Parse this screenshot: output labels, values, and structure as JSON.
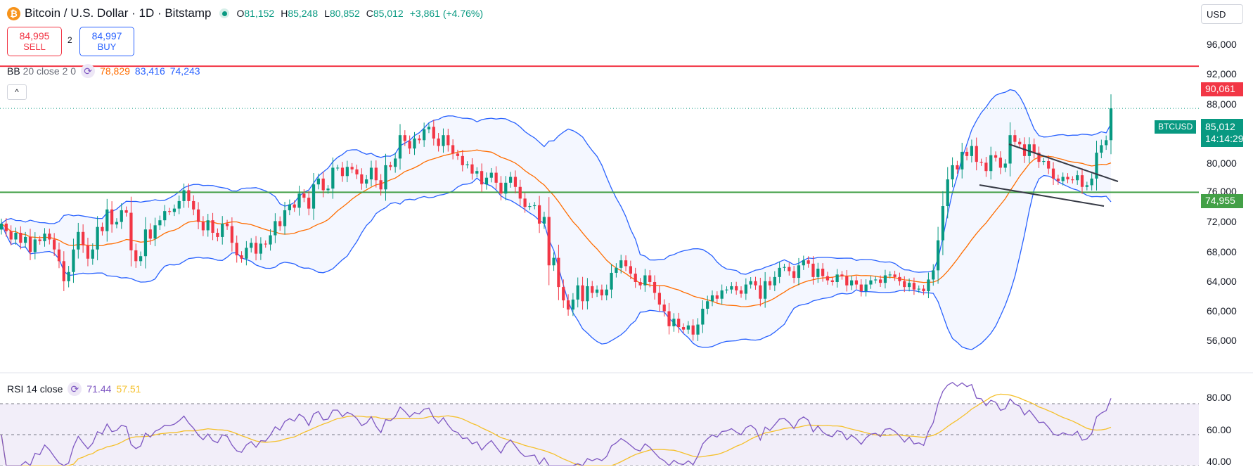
{
  "header": {
    "coin_icon": "bitcoin-icon",
    "title": "Bitcoin / U.S. Dollar · 1D · Bitstamp",
    "open_label": "O",
    "open": "81,152",
    "high_label": "H",
    "high": "85,248",
    "low_label": "L",
    "low": "80,852",
    "close_label": "C",
    "close": "85,012",
    "change": "+3,861 (+4.76%)"
  },
  "trade": {
    "sell_price": "84,995",
    "sell_label": "SELL",
    "spread": "2",
    "buy_price": "84,997",
    "buy_label": "BUY"
  },
  "bb": {
    "name": "BB",
    "params": "20 close 2 0",
    "basis": "78,829",
    "upper": "83,416",
    "lower": "74,243"
  },
  "rsi": {
    "name": "RSI",
    "params": "14 close",
    "value": "71.44",
    "ma": "57.51"
  },
  "currency": "USD",
  "price_axis": [
    "96,000",
    "92,000",
    "88,000",
    "80,000",
    "76,000",
    "72,000",
    "68,000",
    "64,000",
    "60,000",
    "56,000"
  ],
  "rsi_axis": [
    "80.00",
    "60.00",
    "40.00"
  ],
  "tags": {
    "resistance": "90,061",
    "support": "74,955",
    "symbol": "BTCUSD",
    "last_price": "85,012",
    "countdown": "14:14:29"
  },
  "colors": {
    "up": "#089981",
    "down": "#f23645",
    "bb_band": "#2962ff",
    "bb_basis": "#ff6d00",
    "rsi": "#7e57c2",
    "rsi_ma": "#f5c02b",
    "resistance": "#f23645",
    "support": "#43a047"
  },
  "chart_data": {
    "type": "candlestick",
    "y_range": [
      54000,
      98000
    ],
    "horizontal_lines": [
      90061,
      74955
    ],
    "last_price": 85012,
    "closes": [
      71200,
      70300,
      69300,
      70100,
      68900,
      69600,
      67800,
      69300,
      69100,
      70000,
      69300,
      68100,
      66700,
      64300,
      65400,
      68100,
      70200,
      68600,
      67000,
      68100,
      70800,
      70300,
      72900,
      71100,
      71400,
      72800,
      72500,
      68000,
      66700,
      67300,
      70500,
      69400,
      71000,
      71600,
      72700,
      72600,
      73000,
      73900,
      75200,
      73900,
      72900,
      71400,
      70400,
      71600,
      70100,
      69600,
      71200,
      70900,
      68900,
      67400,
      67000,
      68300,
      68900,
      67600,
      68800,
      68700,
      69800,
      71500,
      70900,
      72800,
      73500,
      73100,
      74800,
      74300,
      73000,
      75900,
      76600,
      75200,
      75400,
      77900,
      77900,
      76900,
      78000,
      77700,
      77100,
      76000,
      76500,
      77900,
      76400,
      75300,
      78200,
      78000,
      79000,
      81800,
      81100,
      80200,
      81400,
      81200,
      82500,
      82800,
      81400,
      80500,
      81800,
      80600,
      79600,
      79300,
      78200,
      78300,
      77200,
      77500,
      75900,
      76700,
      77300,
      76100,
      74800,
      76100,
      76800,
      75600,
      74200,
      73200,
      73300,
      73400,
      71200,
      72000,
      66200,
      67100,
      63600,
      62000,
      60900,
      62100,
      63800,
      61900,
      63700,
      62900,
      63300,
      62600,
      63300,
      65300,
      65900,
      66800,
      66100,
      65200,
      64200,
      63800,
      65000,
      64200,
      62900,
      61500,
      60700,
      58900,
      59800,
      58800,
      58500,
      59000,
      57900,
      59100,
      61000,
      61900,
      62600,
      62200,
      63200,
      63300,
      63700,
      63200,
      62800,
      63900,
      64300,
      63800,
      62200,
      64300,
      63800,
      64800,
      65900,
      66000,
      65500,
      64700,
      66200,
      66800,
      66400,
      64800,
      65800,
      64900,
      64400,
      64200,
      65100,
      64900,
      63800,
      64400,
      63900,
      63100,
      63900,
      64400,
      64500,
      64100,
      65000,
      65100,
      64800,
      64300,
      63600,
      64100,
      63300,
      63400,
      63100,
      64500,
      65600,
      69200,
      73300,
      76500,
      78200,
      77700,
      79800,
      79300,
      80500,
      78600,
      78500,
      77500,
      79400,
      79100,
      77900,
      78400,
      81800,
      81000,
      80700,
      79300,
      80700,
      79700,
      78600,
      78700,
      77800,
      76600,
      76300,
      76800,
      76500,
      76400,
      77000,
      75600,
      75800,
      76600,
      79700,
      80600,
      81200,
      85012
    ]
  }
}
